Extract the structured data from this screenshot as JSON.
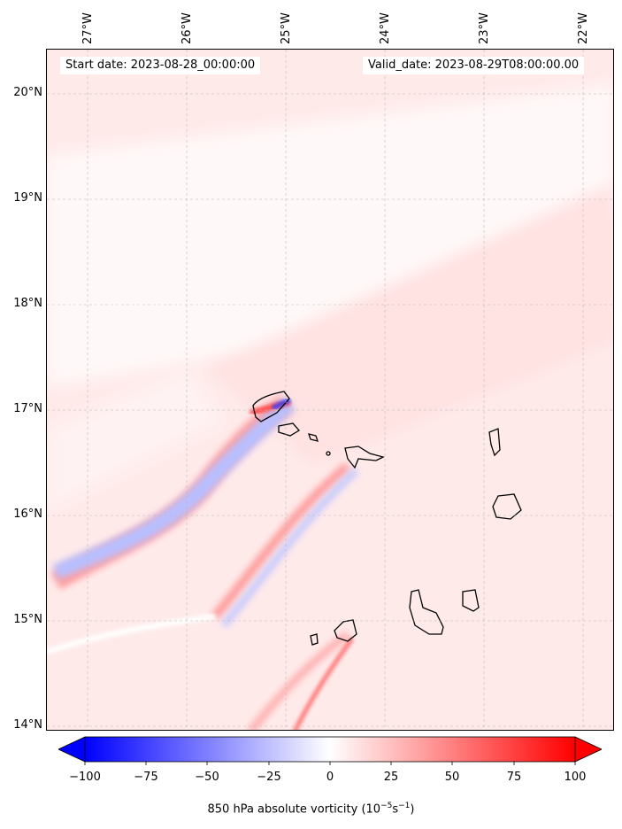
{
  "header": {
    "start_date": "Start date: 2023-08-28_00:00:00",
    "valid_date": "Valid_date: 2023-08-29T08:00:00.00"
  },
  "longitude_labels": [
    "27°W",
    "26°W",
    "25°W",
    "24°W",
    "23°W",
    "22°W"
  ],
  "latitude_labels": [
    "20°N",
    "19°N",
    "18°N",
    "17°N",
    "16°N",
    "15°N",
    "14°N"
  ],
  "colorbar": {
    "ticks": [
      "−100",
      "−75",
      "−50",
      "−25",
      "0",
      "25",
      "50",
      "75",
      "100"
    ],
    "label_prefix": "850 hPa absolute vorticity (10",
    "label_exp1": "−5",
    "label_mid": "s",
    "label_exp2": "−1",
    "label_suffix": ")",
    "min": -100,
    "max": 100,
    "colors": {
      "negative": "#0000ff",
      "zero": "#ffffff",
      "positive": "#ff0000"
    }
  },
  "map": {
    "lon_range": [
      -27.4,
      -21.75
    ],
    "lat_range": [
      13.95,
      20.45
    ],
    "gridlines": true
  }
}
